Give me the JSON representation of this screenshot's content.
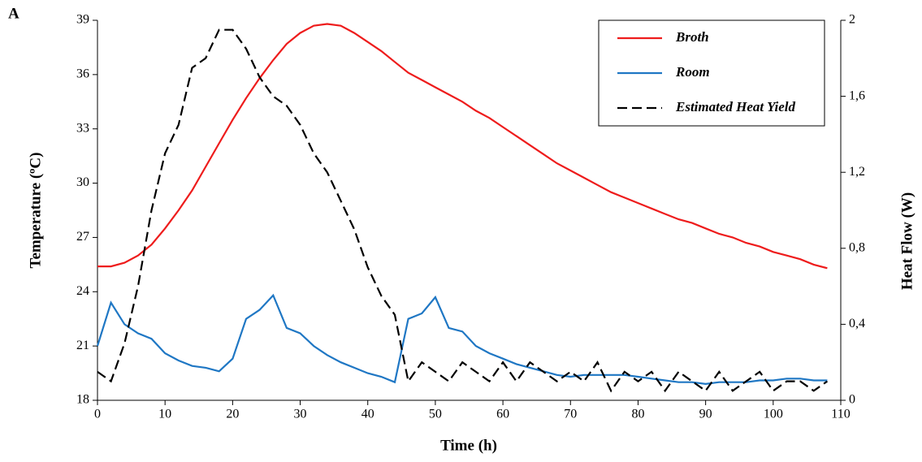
{
  "chart_data": {
    "type": "line",
    "panel_label": "A",
    "xlabel": "Time (h)",
    "ylabel": "Temperature (ºC)",
    "y2label": "Heat Flow (W)",
    "xlim": [
      0,
      110
    ],
    "xticks": [
      0,
      10,
      20,
      30,
      40,
      50,
      60,
      70,
      80,
      90,
      100,
      110
    ],
    "ylim": [
      18,
      39
    ],
    "yticks": [
      18,
      21,
      24,
      27,
      30,
      33,
      36,
      39
    ],
    "y2lim": [
      0,
      2
    ],
    "y2ticks": [
      0,
      {
        "value": 0.4,
        "label": "0,4"
      },
      {
        "value": 0.8,
        "label": "0,8"
      },
      {
        "value": 1.2,
        "label": "1,2"
      },
      {
        "value": 1.6,
        "label": "1,6"
      },
      2
    ],
    "legend": "upper right",
    "x": [
      0,
      2,
      4,
      6,
      8,
      10,
      12,
      14,
      16,
      18,
      20,
      22,
      24,
      26,
      28,
      30,
      32,
      34,
      36,
      38,
      40,
      42,
      44,
      46,
      48,
      50,
      52,
      54,
      56,
      58,
      60,
      62,
      64,
      66,
      68,
      70,
      72,
      74,
      76,
      78,
      80,
      82,
      84,
      86,
      88,
      90,
      92,
      94,
      96,
      98,
      100,
      102,
      104,
      106,
      108
    ],
    "series": [
      {
        "name": "Broth",
        "color": "#ee1c1c",
        "dash": false,
        "values": [
          25.4,
          25.4,
          25.6,
          26.0,
          26.6,
          27.5,
          28.5,
          29.6,
          30.9,
          32.2,
          33.5,
          34.7,
          35.8,
          36.8,
          37.7,
          38.3,
          38.7,
          38.8,
          38.7,
          38.3,
          37.8,
          37.3,
          36.7,
          36.1,
          35.7,
          35.3,
          34.9,
          34.5,
          34.0,
          33.6,
          33.1,
          32.6,
          32.1,
          31.6,
          31.1,
          30.7,
          30.3,
          29.9,
          29.5,
          29.2,
          28.9,
          28.6,
          28.3,
          28.0,
          27.8,
          27.5,
          27.2,
          27.0,
          26.7,
          26.5,
          26.2,
          26.0,
          25.8,
          25.5,
          25.3
        ]
      },
      {
        "name": "Room",
        "color": "#1f77c4",
        "dash": false,
        "values": [
          21.0,
          23.4,
          22.2,
          21.7,
          21.4,
          20.6,
          20.2,
          19.9,
          19.8,
          19.6,
          20.3,
          22.5,
          23.0,
          23.8,
          22.0,
          21.7,
          21.0,
          20.5,
          20.1,
          19.8,
          19.5,
          19.3,
          19.0,
          22.5,
          22.8,
          23.7,
          22.0,
          21.8,
          21.0,
          20.6,
          20.3,
          20.0,
          19.8,
          19.6,
          19.4,
          19.3,
          19.4,
          19.4,
          19.4,
          19.4,
          19.3,
          19.2,
          19.1,
          19.0,
          19.0,
          18.9,
          19.0,
          19.0,
          19.0,
          19.1,
          19.1,
          19.2,
          19.2,
          19.1,
          19.1
        ]
      },
      {
        "name": "Estimated Heat Yield",
        "color": "#000000",
        "dash": true,
        "axis": "y2",
        "values": [
          0.15,
          0.1,
          0.3,
          0.6,
          1.0,
          1.3,
          1.45,
          1.75,
          1.8,
          1.95,
          1.95,
          1.85,
          1.7,
          1.6,
          1.55,
          1.45,
          1.3,
          1.2,
          1.05,
          0.9,
          0.7,
          0.55,
          0.45,
          0.1,
          0.2,
          0.15,
          0.1,
          0.2,
          0.15,
          0.1,
          0.2,
          0.1,
          0.2,
          0.15,
          0.1,
          0.15,
          0.1,
          0.2,
          0.05,
          0.15,
          0.1,
          0.15,
          0.05,
          0.15,
          0.1,
          0.05,
          0.15,
          0.05,
          0.1,
          0.15,
          0.05,
          0.1,
          0.1,
          0.05,
          0.1
        ]
      }
    ]
  }
}
